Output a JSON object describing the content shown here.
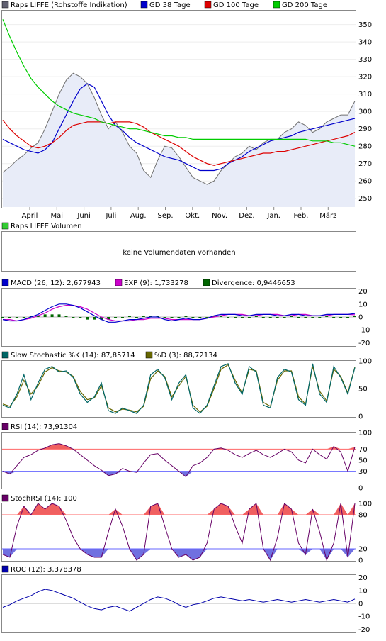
{
  "colors": {
    "price_line": "#707070",
    "price_fill": "#e8ecf8",
    "gd38": "#0000cc",
    "gd100": "#dd0000",
    "gd200": "#00cc00",
    "volume_sq": "#33cc33",
    "macd": "#0000cc",
    "exp": "#cc00cc",
    "divergence": "#006600",
    "stoch_k": "#006666",
    "stoch_d": "#666600",
    "rsi": "#660066",
    "stochrsi": "#660066",
    "upper_fill": "#f06060",
    "lower_fill": "#7070e0",
    "upper_line": "#ff6666",
    "lower_line": "#6666ff",
    "roc": "#0000aa"
  },
  "panels": {
    "price": {
      "legend": [
        {
          "label": "Raps LIFFE (Rohstoffe Indikation)",
          "color": "#606070"
        },
        {
          "label": "GD 38 Tage",
          "color": "#0000cc"
        },
        {
          "label": "GD 100 Tage",
          "color": "#dd0000"
        },
        {
          "label": "GD 200 Tage",
          "color": "#00cc00"
        }
      ]
    },
    "volume": {
      "legend": "Raps LIFFE Volumen",
      "message": "keine Volumendaten vorhanden"
    },
    "macd": {
      "legend": [
        {
          "label": "MACD (26, 12): 2,677943",
          "color": "#0000cc"
        },
        {
          "label": "EXP (9): 1,733278",
          "color": "#cc00cc"
        },
        {
          "label": "Divergence: 0,9446653",
          "color": "#006600"
        }
      ]
    },
    "stoch": {
      "legend": [
        {
          "label": "Slow Stochastic %K (14): 87,85714",
          "color": "#006666"
        },
        {
          "label": "%D (3): 88,72134",
          "color": "#666600"
        }
      ]
    },
    "rsi": {
      "legend": [
        {
          "label": "RSI (14): 73,91304",
          "color": "#660066"
        }
      ]
    },
    "stochrsi": {
      "legend": [
        {
          "label": "StochRSI (14): 100",
          "color": "#660066"
        }
      ]
    },
    "roc": {
      "legend": [
        {
          "label": "ROC (12): 3,378378",
          "color": "#0000aa"
        }
      ]
    }
  },
  "chart_data": [
    {
      "type": "line",
      "x_months": [
        "April",
        "Mai",
        "Juni",
        "Juli",
        "Aug.",
        "Sep.",
        "Okt.",
        "Nov.",
        "Dez.",
        "Jan.",
        "Feb.",
        "März"
      ],
      "ylim": [
        245,
        358
      ],
      "yticks": [
        250,
        260,
        270,
        280,
        290,
        300,
        310,
        320,
        330,
        340,
        350
      ],
      "x": [
        0,
        5,
        10,
        15,
        20,
        25,
        30,
        35,
        40,
        45,
        50,
        55,
        60,
        65,
        70,
        75,
        80,
        85,
        90,
        95,
        100,
        105,
        110,
        115,
        120,
        125,
        130,
        135,
        140,
        145,
        150,
        155,
        160,
        165,
        170,
        175,
        180,
        185,
        190,
        195,
        200,
        205,
        210,
        215,
        220,
        225,
        230,
        235,
        240,
        245,
        250
      ],
      "series": [
        {
          "name": "Raps LIFFE (Rohstoffe Indikation)",
          "values": [
            265,
            268,
            272,
            275,
            279,
            282,
            290,
            300,
            310,
            318,
            322,
            320,
            316,
            308,
            298,
            290,
            294,
            288,
            280,
            276,
            266,
            262,
            272,
            280,
            279,
            274,
            268,
            262,
            260,
            258,
            260,
            266,
            270,
            274,
            276,
            280,
            278,
            282,
            284,
            284,
            288,
            290,
            294,
            292,
            288,
            290,
            294,
            296,
            298,
            298,
            306
          ]
        },
        {
          "name": "GD 38 Tage",
          "values": [
            284,
            282,
            280,
            278,
            277,
            276,
            278,
            282,
            290,
            298,
            306,
            313,
            316,
            314,
            306,
            298,
            292,
            289,
            285,
            282,
            280,
            278,
            276,
            274,
            273,
            272,
            270,
            268,
            266,
            266,
            266,
            267,
            270,
            272,
            274,
            277,
            279,
            281,
            283,
            284,
            285,
            286,
            288,
            289,
            290,
            291,
            292,
            293,
            294,
            295,
            296
          ]
        },
        {
          "name": "GD 100 Tage",
          "values": [
            295,
            290,
            286,
            283,
            280,
            279,
            280,
            282,
            285,
            289,
            292,
            293,
            294,
            294,
            294,
            293,
            294,
            294,
            294,
            293,
            291,
            288,
            286,
            284,
            282,
            280,
            277,
            274,
            272,
            270,
            269,
            270,
            271,
            272,
            273,
            274,
            275,
            276,
            276,
            277,
            277,
            278,
            279,
            280,
            281,
            282,
            283,
            284,
            285,
            286,
            288
          ]
        },
        {
          "name": "GD 200 Tage",
          "values": [
            353,
            343,
            334,
            326,
            319,
            314,
            310,
            306,
            303,
            301,
            299,
            298,
            297,
            296,
            294,
            293,
            292,
            291,
            290,
            290,
            289,
            288,
            287,
            286,
            286,
            285,
            285,
            284,
            284,
            284,
            284,
            284,
            284,
            284,
            284,
            284,
            284,
            284,
            284,
            284,
            284,
            284,
            284,
            284,
            283,
            283,
            283,
            282,
            282,
            281,
            280
          ]
        }
      ]
    },
    {
      "type": "line",
      "ylim": [
        -22,
        22
      ],
      "yticks": [
        20,
        10,
        0,
        -10,
        -20
      ],
      "x": [
        0,
        5,
        10,
        15,
        20,
        25,
        30,
        35,
        40,
        45,
        50,
        55,
        60,
        65,
        70,
        75,
        80,
        85,
        90,
        95,
        100,
        105,
        110,
        115,
        120,
        125,
        130,
        135,
        140,
        145,
        150,
        155,
        160,
        165,
        170,
        175,
        180,
        185,
        190,
        195,
        200,
        205,
        210,
        215,
        220,
        225,
        230,
        235,
        240,
        245,
        250
      ],
      "series": [
        {
          "name": "MACD (26, 12): 2,677943",
          "values": [
            -2,
            -3,
            -3,
            -2,
            0,
            2,
            5,
            8,
            10,
            10,
            9,
            7,
            4,
            1,
            -2,
            -4,
            -4,
            -3,
            -2,
            -2,
            -1,
            0,
            0,
            -2,
            -3,
            -2,
            -1,
            -2,
            -2,
            -1,
            1,
            2,
            2,
            2,
            1,
            1,
            2,
            2,
            2,
            1,
            1,
            2,
            2,
            1,
            1,
            1,
            2,
            2,
            2,
            2,
            2.7
          ]
        },
        {
          "name": "EXP (9): 1,733278",
          "values": [
            -2,
            -2,
            -3,
            -2,
            -1,
            1,
            3,
            6,
            8,
            9,
            9,
            8,
            6,
            3,
            0,
            -2,
            -3,
            -3,
            -3,
            -2,
            -2,
            -1,
            -1,
            -1,
            -2,
            -2,
            -2,
            -2,
            -2,
            -1,
            0,
            1,
            2,
            2,
            2,
            1,
            1,
            2,
            2,
            2,
            1,
            1,
            2,
            2,
            1,
            1,
            1,
            2,
            2,
            2,
            1.7
          ]
        },
        {
          "name": "Divergence: 0,9446653",
          "values": [
            0,
            -1,
            0,
            0,
            1,
            1,
            2,
            2,
            2,
            1,
            0,
            -1,
            -2,
            -2,
            -2,
            -2,
            -1,
            0,
            1,
            0,
            1,
            1,
            1,
            -1,
            -1,
            0,
            1,
            0,
            0,
            0,
            1,
            1,
            0,
            0,
            -1,
            0,
            1,
            0,
            0,
            -1,
            0,
            1,
            0,
            -1,
            0,
            0,
            1,
            0,
            0,
            0,
            0.9
          ]
        }
      ]
    },
    {
      "type": "line",
      "ylim": [
        0,
        100
      ],
      "yticks": [
        100,
        50,
        0
      ],
      "x": [
        0,
        5,
        10,
        15,
        20,
        25,
        30,
        35,
        40,
        45,
        50,
        55,
        60,
        65,
        70,
        75,
        80,
        85,
        90,
        95,
        100,
        105,
        110,
        115,
        120,
        125,
        130,
        135,
        140,
        145,
        150,
        155,
        160,
        165,
        170,
        175,
        180,
        185,
        190,
        195,
        200,
        205,
        210,
        215,
        220,
        225,
        230,
        235,
        240,
        245,
        250
      ],
      "series": [
        {
          "name": "Slow Stochastic %K (14): 87,85714",
          "values": [
            20,
            15,
            40,
            75,
            30,
            60,
            85,
            90,
            80,
            82,
            70,
            40,
            25,
            35,
            60,
            10,
            5,
            15,
            10,
            5,
            20,
            75,
            85,
            70,
            30,
            60,
            75,
            15,
            5,
            20,
            55,
            90,
            95,
            60,
            40,
            90,
            80,
            20,
            15,
            70,
            85,
            80,
            30,
            20,
            95,
            40,
            25,
            90,
            70,
            40,
            88
          ]
        },
        {
          "name": "%D (3): 88,72134",
          "values": [
            22,
            18,
            35,
            65,
            40,
            55,
            80,
            88,
            82,
            80,
            72,
            45,
            30,
            33,
            55,
            15,
            8,
            13,
            11,
            8,
            18,
            68,
            82,
            72,
            35,
            55,
            72,
            20,
            8,
            18,
            50,
            85,
            93,
            65,
            42,
            85,
            82,
            25,
            18,
            65,
            82,
            82,
            35,
            22,
            90,
            45,
            28,
            85,
            72,
            42,
            89
          ]
        }
      ]
    },
    {
      "type": "line",
      "ylim": [
        0,
        100
      ],
      "yticks": [
        100,
        70,
        50,
        30,
        0
      ],
      "x": [
        0,
        5,
        10,
        15,
        20,
        25,
        30,
        35,
        40,
        45,
        50,
        55,
        60,
        65,
        70,
        75,
        80,
        85,
        90,
        95,
        100,
        105,
        110,
        115,
        120,
        125,
        130,
        135,
        140,
        145,
        150,
        155,
        160,
        165,
        170,
        175,
        180,
        185,
        190,
        195,
        200,
        205,
        210,
        215,
        220,
        225,
        230,
        235,
        240,
        245,
        250
      ],
      "series": [
        {
          "name": "RSI (14): 73,91304",
          "values": [
            30,
            25,
            40,
            55,
            60,
            68,
            72,
            78,
            80,
            76,
            70,
            60,
            50,
            40,
            32,
            22,
            25,
            35,
            30,
            28,
            45,
            60,
            62,
            50,
            40,
            30,
            20,
            40,
            45,
            55,
            70,
            72,
            68,
            60,
            55,
            62,
            68,
            60,
            55,
            62,
            70,
            65,
            50,
            45,
            70,
            60,
            52,
            75,
            65,
            30,
            74
          ]
        }
      ]
    },
    {
      "type": "line",
      "ylim": [
        0,
        100
      ],
      "yticks": [
        100,
        80,
        20,
        0
      ],
      "x": [
        0,
        5,
        10,
        15,
        20,
        25,
        30,
        35,
        40,
        45,
        50,
        55,
        60,
        65,
        70,
        75,
        80,
        85,
        90,
        95,
        100,
        105,
        110,
        115,
        120,
        125,
        130,
        135,
        140,
        145,
        150,
        155,
        160,
        165,
        170,
        175,
        180,
        185,
        190,
        195,
        200,
        205,
        210,
        215,
        220,
        225,
        230,
        235,
        240,
        245,
        250
      ],
      "series": [
        {
          "name": "StochRSI (14): 100",
          "values": [
            10,
            5,
            60,
            95,
            80,
            100,
            90,
            100,
            95,
            70,
            40,
            20,
            10,
            5,
            5,
            50,
            90,
            60,
            20,
            0,
            10,
            95,
            100,
            60,
            20,
            5,
            10,
            0,
            5,
            30,
            90,
            100,
            95,
            60,
            30,
            90,
            100,
            20,
            0,
            40,
            100,
            90,
            30,
            10,
            90,
            50,
            0,
            30,
            100,
            5,
            100
          ]
        }
      ]
    },
    {
      "type": "line",
      "ylim": [
        -22,
        22
      ],
      "yticks": [
        20,
        10,
        0,
        -10,
        -20
      ],
      "x": [
        0,
        5,
        10,
        15,
        20,
        25,
        30,
        35,
        40,
        45,
        50,
        55,
        60,
        65,
        70,
        75,
        80,
        85,
        90,
        95,
        100,
        105,
        110,
        115,
        120,
        125,
        130,
        135,
        140,
        145,
        150,
        155,
        160,
        165,
        170,
        175,
        180,
        185,
        190,
        195,
        200,
        205,
        210,
        215,
        220,
        225,
        230,
        235,
        240,
        245,
        250
      ],
      "series": [
        {
          "name": "ROC (12): 3,378378",
          "values": [
            -3,
            -1,
            2,
            4,
            6,
            9,
            11,
            10,
            8,
            6,
            4,
            1,
            -2,
            -4,
            -5,
            -3,
            -2,
            -4,
            -6,
            -3,
            0,
            3,
            5,
            4,
            2,
            -1,
            -3,
            -1,
            0,
            2,
            4,
            5,
            4,
            3,
            2,
            3,
            2,
            1,
            2,
            3,
            2,
            1,
            2,
            3,
            2,
            1,
            2,
            3,
            2,
            1,
            3.4
          ]
        }
      ]
    }
  ]
}
